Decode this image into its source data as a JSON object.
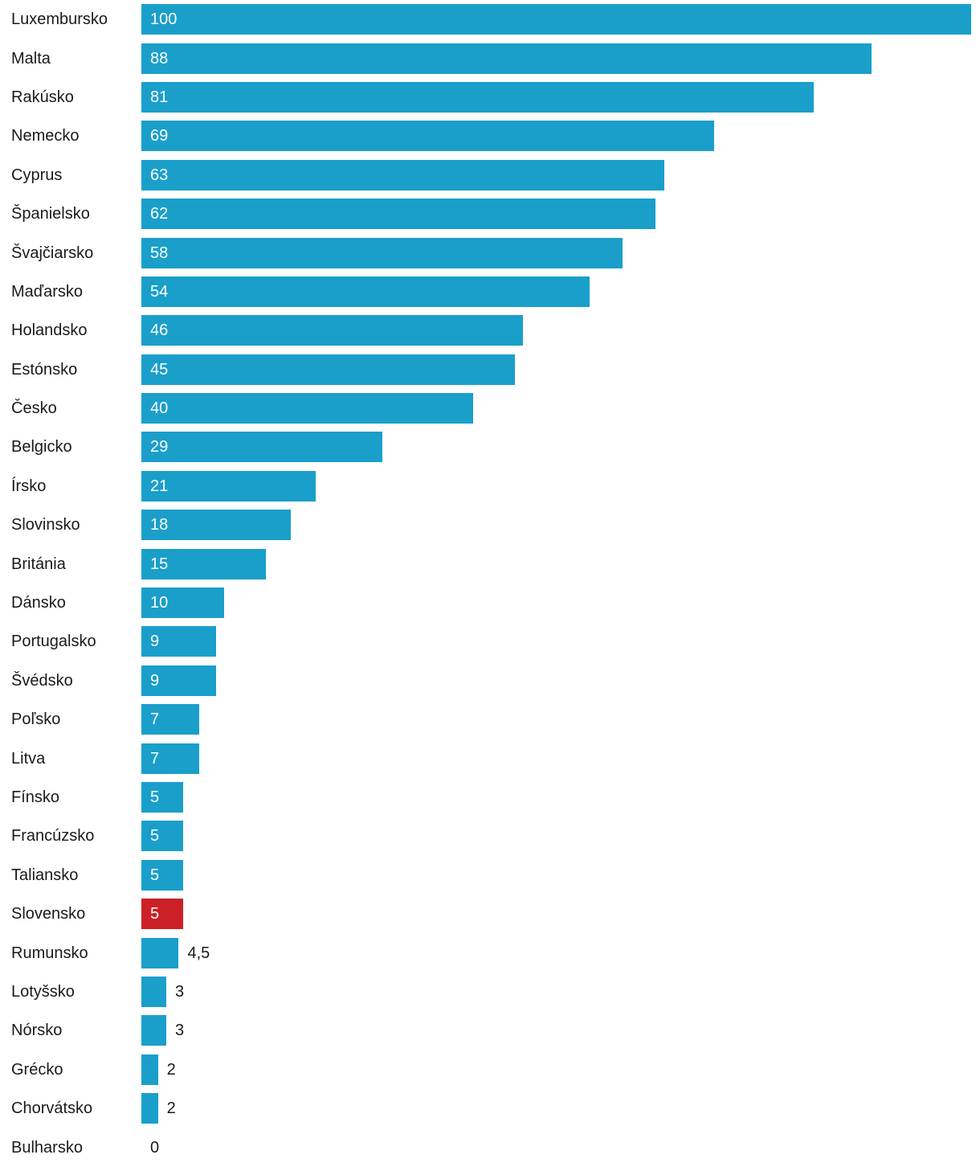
{
  "chart_data": {
    "type": "bar",
    "orientation": "horizontal",
    "title": "",
    "xlabel": "",
    "ylabel": "",
    "xlim": [
      0,
      100
    ],
    "grid": false,
    "legend": false,
    "categories": [
      "Luxembursko",
      "Malta",
      "Rakúsko",
      "Nemecko",
      "Cyprus",
      "Španielsko",
      "Švajčiarsko",
      "Maďarsko",
      "Holandsko",
      "Estónsko",
      "Česko",
      "Belgicko",
      "Írsko",
      "Slovinsko",
      "Británia",
      "Dánsko",
      "Portugalsko",
      "Švédsko",
      "Poľsko",
      "Litva",
      "Fínsko",
      "Francúzsko",
      "Taliansko",
      "Slovensko",
      "Rumunsko",
      "Lotyšsko",
      "Nórsko",
      "Grécko",
      "Chorvátsko",
      "Bulharsko"
    ],
    "values": [
      100,
      88,
      81,
      69,
      63,
      62,
      58,
      54,
      46,
      45,
      40,
      29,
      21,
      18,
      15,
      10,
      9,
      9,
      7,
      7,
      5,
      5,
      5,
      5,
      4.5,
      3,
      3,
      2,
      2,
      0
    ],
    "value_labels": [
      "100",
      "88",
      "81",
      "69",
      "63",
      "62",
      "58",
      "54",
      "46",
      "45",
      "40",
      "29",
      "21",
      "18",
      "15",
      "10",
      "9",
      "9",
      "7",
      "7",
      "5",
      "5",
      "5",
      "5",
      "4,5",
      "3",
      "3",
      "2",
      "2",
      "0"
    ],
    "highlighted_category": "Slovensko",
    "highlight_index": 23,
    "colors": {
      "bar": "#1a9fcb",
      "highlight": "#ca2026",
      "value_inside": "#ffffff",
      "value_outside": "#1a1a1a",
      "category_label": "#1a1a1a",
      "background": "#ffffff"
    }
  }
}
